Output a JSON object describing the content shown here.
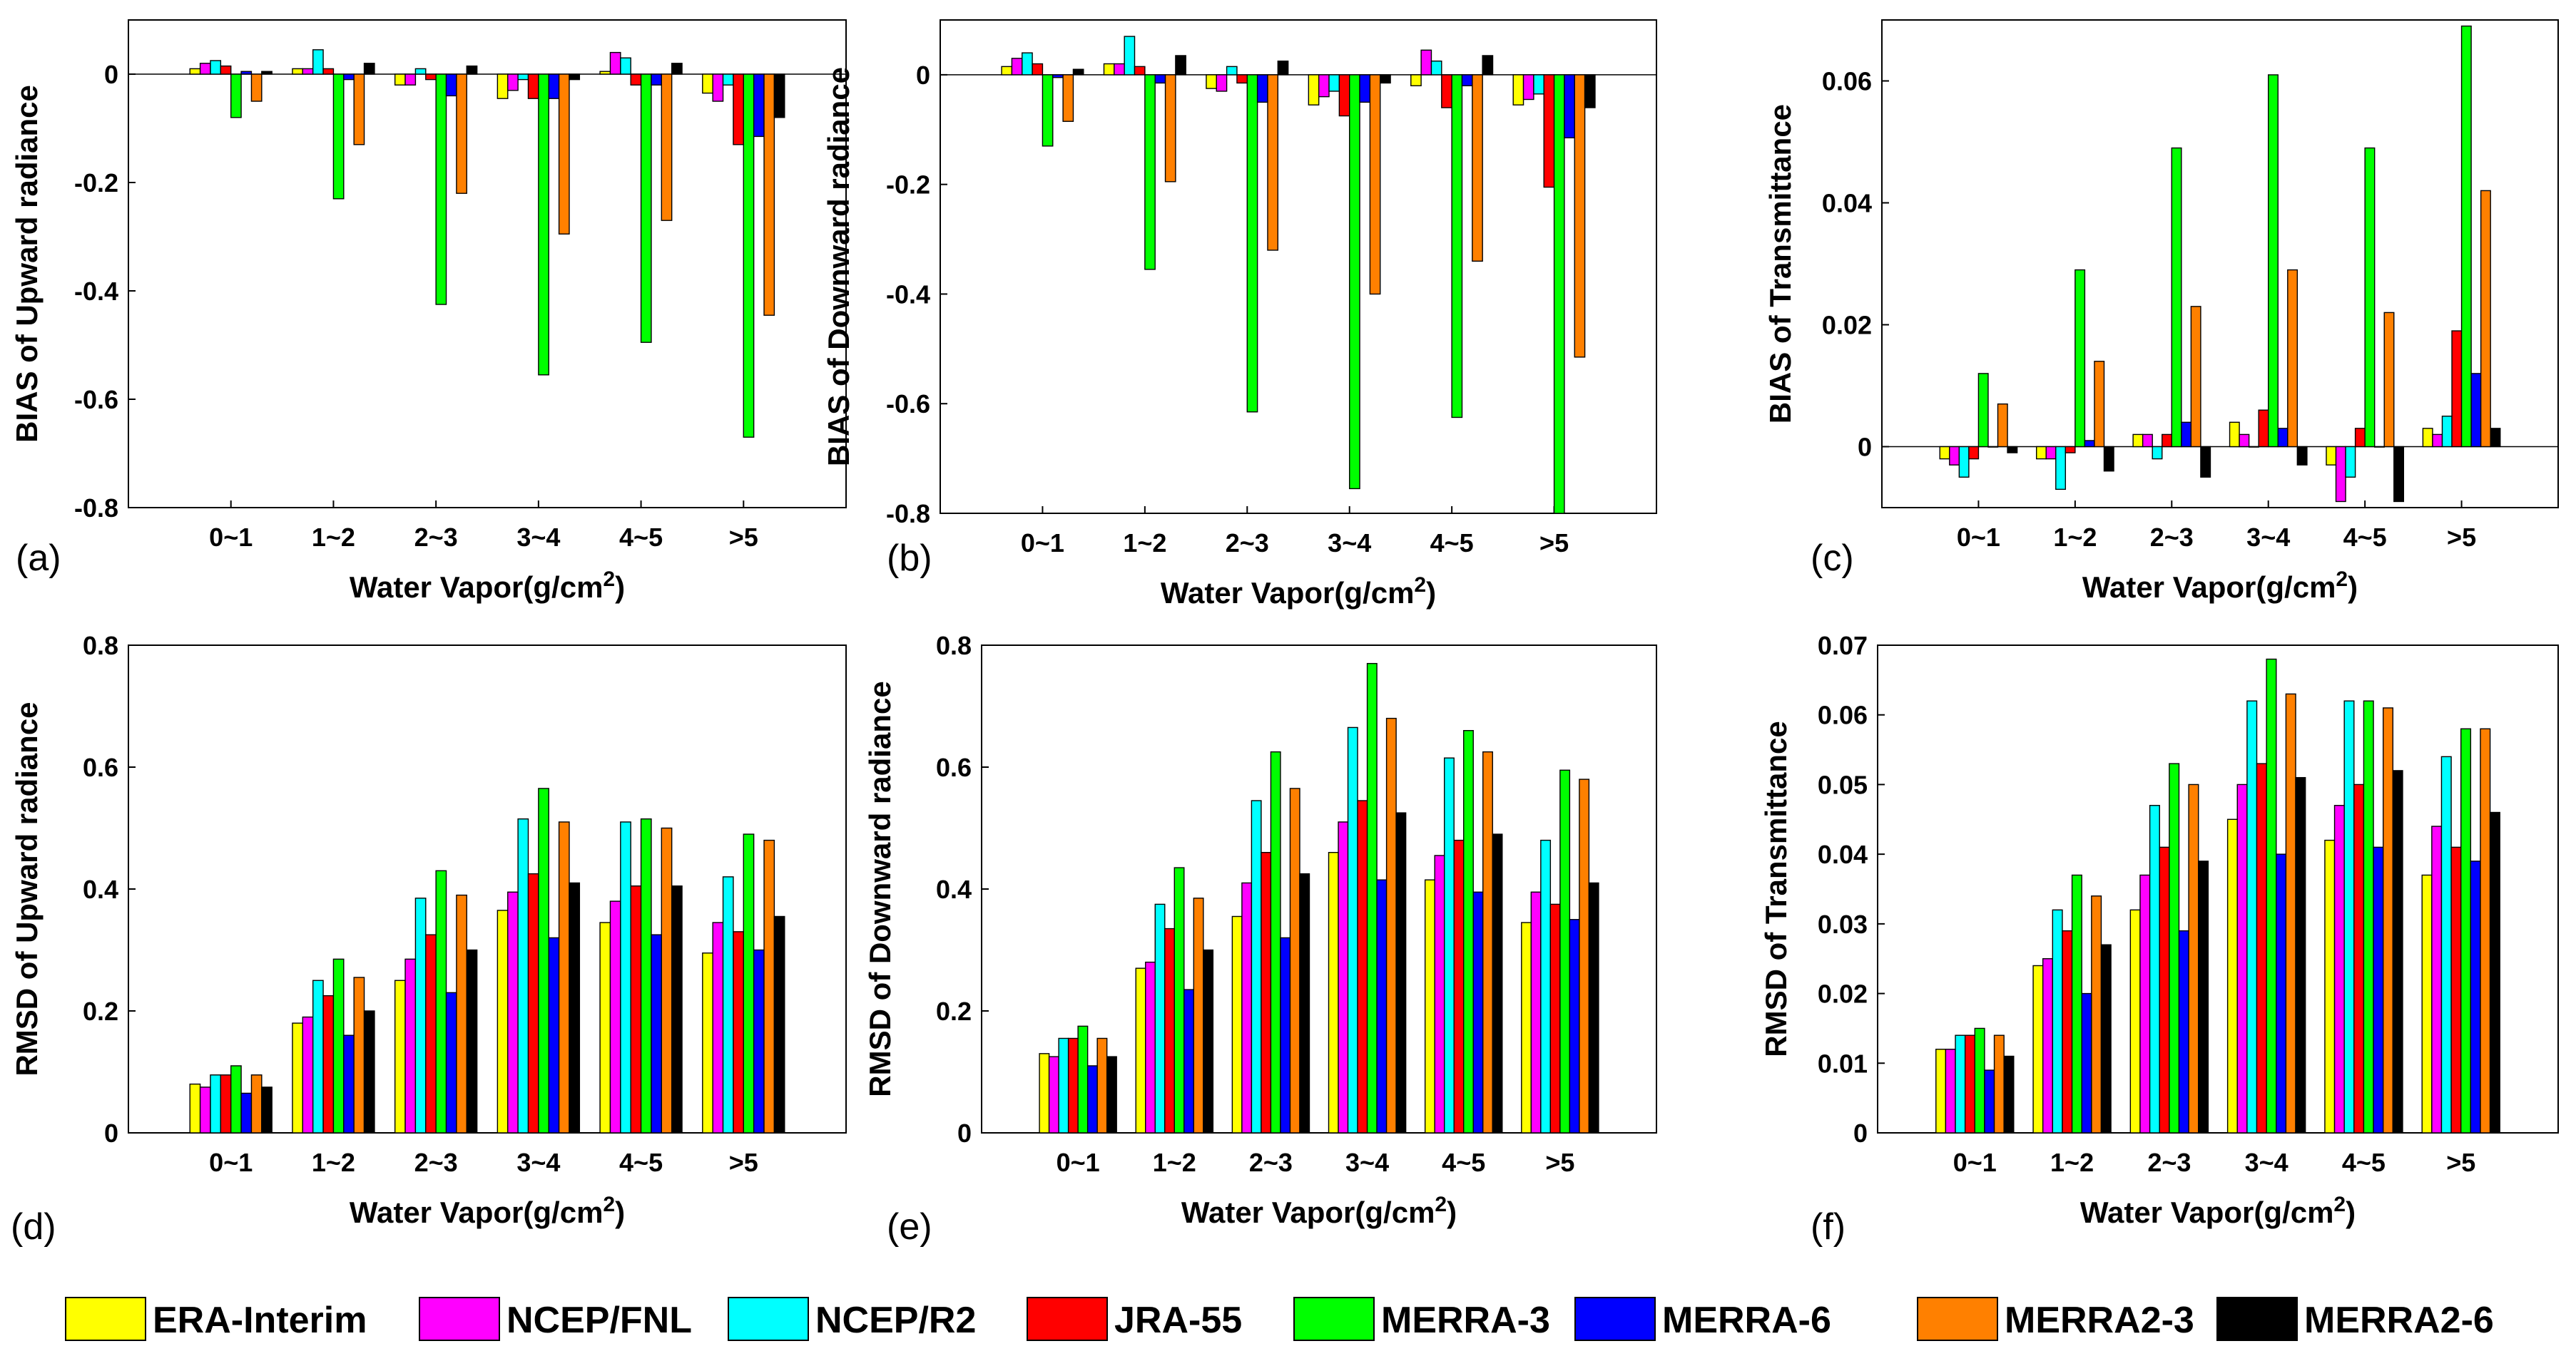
{
  "categories": [
    "0~1",
    "1~2",
    "2~3",
    "3~4",
    "4~5",
    ">5"
  ],
  "xlabel": "Water Vapor(g/cm",
  "xlabel_sup": "2",
  "xlabel_end": ")",
  "legend": [
    {
      "name": "ERA-Interim",
      "color": "#ffff00"
    },
    {
      "name": "NCEP/FNL",
      "color": "#ff00ff"
    },
    {
      "name": "NCEP/R2",
      "color": "#00ffff"
    },
    {
      "name": "JRA-55",
      "color": "#ff0000"
    },
    {
      "name": "MERRA-3",
      "color": "#00ff00"
    },
    {
      "name": "MERRA-6",
      "color": "#0000ff"
    },
    {
      "name": "MERRA2-3",
      "color": "#ff8000"
    },
    {
      "name": "MERRA2-6",
      "color": "#000000"
    }
  ],
  "chart_data": [
    {
      "panel": "(a)",
      "type": "bar",
      "ylabel": "BIAS of Upward radiance",
      "ylim": [
        -0.8,
        0.1
      ],
      "yticks": [
        -0.8,
        -0.6,
        -0.4,
        -0.2,
        0
      ],
      "ytick_labels": [
        "-0.8",
        "-0.6",
        "-0.4",
        "-0.2",
        "0"
      ],
      "series": [
        {
          "name": "ERA-Interim",
          "values": [
            0.01,
            0.01,
            -0.02,
            -0.045,
            0.005,
            -0.035
          ]
        },
        {
          "name": "NCEP/FNL",
          "values": [
            0.02,
            0.01,
            -0.02,
            -0.03,
            0.04,
            -0.05
          ]
        },
        {
          "name": "NCEP/R2",
          "values": [
            0.025,
            0.045,
            0.01,
            -0.01,
            0.03,
            -0.02
          ]
        },
        {
          "name": "JRA-55",
          "values": [
            0.015,
            0.01,
            -0.01,
            -0.045,
            -0.02,
            -0.13
          ]
        },
        {
          "name": "MERRA-3",
          "values": [
            -0.08,
            -0.23,
            -0.425,
            -0.555,
            -0.495,
            -0.67
          ]
        },
        {
          "name": "MERRA-6",
          "values": [
            0.005,
            -0.01,
            -0.04,
            -0.045,
            -0.02,
            -0.115
          ]
        },
        {
          "name": "MERRA2-3",
          "values": [
            -0.05,
            -0.13,
            -0.22,
            -0.295,
            -0.27,
            -0.445
          ]
        },
        {
          "name": "MERRA2-6",
          "values": [
            0.005,
            0.02,
            0.015,
            -0.01,
            0.02,
            -0.08
          ]
        }
      ]
    },
    {
      "panel": "(b)",
      "type": "bar",
      "ylabel": "BIAS of Downward radiance",
      "ylim": [
        -0.8,
        0.1
      ],
      "yticks": [
        -0.8,
        -0.6,
        -0.4,
        -0.2,
        0
      ],
      "ytick_labels": [
        "-0.8",
        "-0.6",
        "-0.4",
        "-0.2",
        "0"
      ],
      "series": [
        {
          "name": "ERA-Interim",
          "values": [
            0.015,
            0.02,
            -0.025,
            -0.055,
            -0.02,
            -0.055
          ]
        },
        {
          "name": "NCEP/FNL",
          "values": [
            0.03,
            0.02,
            -0.03,
            -0.04,
            0.045,
            -0.045
          ]
        },
        {
          "name": "NCEP/R2",
          "values": [
            0.04,
            0.07,
            0.015,
            -0.03,
            0.025,
            -0.035
          ]
        },
        {
          "name": "JRA-55",
          "values": [
            0.02,
            0.015,
            -0.015,
            -0.075,
            -0.06,
            -0.205
          ]
        },
        {
          "name": "MERRA-3",
          "values": [
            -0.13,
            -0.355,
            -0.615,
            -0.755,
            -0.625,
            -0.8
          ]
        },
        {
          "name": "MERRA-6",
          "values": [
            -0.005,
            -0.015,
            -0.05,
            -0.05,
            -0.02,
            -0.115
          ]
        },
        {
          "name": "MERRA2-3",
          "values": [
            -0.085,
            -0.195,
            -0.32,
            -0.4,
            -0.34,
            -0.515
          ]
        },
        {
          "name": "MERRA2-6",
          "values": [
            0.01,
            0.035,
            0.025,
            -0.015,
            0.035,
            -0.06
          ]
        }
      ]
    },
    {
      "panel": "(c)",
      "type": "bar",
      "ylabel": "BIAS of Transmittance",
      "ylim": [
        -0.01,
        0.07
      ],
      "yticks": [
        0,
        0.02,
        0.04,
        0.06
      ],
      "ytick_labels": [
        "0",
        "0.02",
        "0.04",
        "0.06"
      ],
      "series": [
        {
          "name": "ERA-Interim",
          "values": [
            -0.002,
            -0.002,
            0.002,
            0.004,
            -0.003,
            0.003
          ]
        },
        {
          "name": "NCEP/FNL",
          "values": [
            -0.003,
            -0.002,
            0.002,
            0.002,
            -0.009,
            0.002
          ]
        },
        {
          "name": "NCEP/R2",
          "values": [
            -0.005,
            -0.007,
            -0.002,
            0,
            -0.005,
            0.005
          ]
        },
        {
          "name": "JRA-55",
          "values": [
            -0.002,
            -0.001,
            0.002,
            0.006,
            0.003,
            0.019
          ]
        },
        {
          "name": "MERRA-3",
          "values": [
            0.012,
            0.029,
            0.049,
            0.061,
            0.049,
            0.069
          ]
        },
        {
          "name": "MERRA-6",
          "values": [
            0,
            0.001,
            0.004,
            0.003,
            0,
            0.012
          ]
        },
        {
          "name": "MERRA2-3",
          "values": [
            0.007,
            0.014,
            0.023,
            0.029,
            0.022,
            0.042
          ]
        },
        {
          "name": "MERRA2-6",
          "values": [
            -0.001,
            -0.004,
            -0.005,
            -0.003,
            -0.009,
            0.003
          ]
        }
      ]
    },
    {
      "panel": "(d)",
      "type": "bar",
      "ylabel": "RMSD of Upward radiance",
      "ylim": [
        0,
        0.8
      ],
      "yticks": [
        0,
        0.2,
        0.4,
        0.6,
        0.8
      ],
      "ytick_labels": [
        "0",
        "0.2",
        "0.4",
        "0.6",
        "0.8"
      ],
      "series": [
        {
          "name": "ERA-Interim",
          "values": [
            0.08,
            0.18,
            0.25,
            0.365,
            0.345,
            0.295
          ]
        },
        {
          "name": "NCEP/FNL",
          "values": [
            0.075,
            0.19,
            0.285,
            0.395,
            0.38,
            0.345
          ]
        },
        {
          "name": "NCEP/R2",
          "values": [
            0.095,
            0.25,
            0.385,
            0.515,
            0.51,
            0.42
          ]
        },
        {
          "name": "JRA-55",
          "values": [
            0.095,
            0.225,
            0.325,
            0.425,
            0.405,
            0.33
          ]
        },
        {
          "name": "MERRA-3",
          "values": [
            0.11,
            0.285,
            0.43,
            0.565,
            0.515,
            0.49
          ]
        },
        {
          "name": "MERRA-6",
          "values": [
            0.065,
            0.16,
            0.23,
            0.32,
            0.325,
            0.3
          ]
        },
        {
          "name": "MERRA2-3",
          "values": [
            0.095,
            0.255,
            0.39,
            0.51,
            0.5,
            0.48
          ]
        },
        {
          "name": "MERRA2-6",
          "values": [
            0.075,
            0.2,
            0.3,
            0.41,
            0.405,
            0.355
          ]
        }
      ]
    },
    {
      "panel": "(e)",
      "type": "bar",
      "ylabel": "RMSD of Downward radiance",
      "ylim": [
        0,
        0.8
      ],
      "yticks": [
        0,
        0.2,
        0.4,
        0.6,
        0.8
      ],
      "ytick_labels": [
        "0",
        "0.2",
        "0.4",
        "0.6",
        "0.8"
      ],
      "series": [
        {
          "name": "ERA-Interim",
          "values": [
            0.13,
            0.27,
            0.355,
            0.46,
            0.415,
            0.345
          ]
        },
        {
          "name": "NCEP/FNL",
          "values": [
            0.125,
            0.28,
            0.41,
            0.51,
            0.455,
            0.395
          ]
        },
        {
          "name": "NCEP/R2",
          "values": [
            0.155,
            0.375,
            0.545,
            0.665,
            0.615,
            0.48
          ]
        },
        {
          "name": "JRA-55",
          "values": [
            0.155,
            0.335,
            0.46,
            0.545,
            0.48,
            0.375
          ]
        },
        {
          "name": "MERRA-3",
          "values": [
            0.175,
            0.435,
            0.625,
            0.77,
            0.66,
            0.595
          ]
        },
        {
          "name": "MERRA-6",
          "values": [
            0.11,
            0.235,
            0.32,
            0.415,
            0.395,
            0.35
          ]
        },
        {
          "name": "MERRA2-3",
          "values": [
            0.155,
            0.385,
            0.565,
            0.68,
            0.625,
            0.58
          ]
        },
        {
          "name": "MERRA2-6",
          "values": [
            0.125,
            0.3,
            0.425,
            0.525,
            0.49,
            0.41
          ]
        }
      ]
    },
    {
      "panel": "(f)",
      "type": "bar",
      "ylabel": "RMSD of Transmittance",
      "ylim": [
        0,
        0.07
      ],
      "yticks": [
        0,
        0.01,
        0.02,
        0.03,
        0.04,
        0.05,
        0.06,
        0.07
      ],
      "ytick_labels": [
        "0",
        "0.01",
        "0.02",
        "0.03",
        "0.04",
        "0.05",
        "0.06",
        "0.07"
      ],
      "series": [
        {
          "name": "ERA-Interim",
          "values": [
            0.012,
            0.024,
            0.032,
            0.045,
            0.042,
            0.037
          ]
        },
        {
          "name": "NCEP/FNL",
          "values": [
            0.012,
            0.025,
            0.037,
            0.05,
            0.047,
            0.044
          ]
        },
        {
          "name": "NCEP/R2",
          "values": [
            0.014,
            0.032,
            0.047,
            0.062,
            0.062,
            0.054
          ]
        },
        {
          "name": "JRA-55",
          "values": [
            0.014,
            0.029,
            0.041,
            0.053,
            0.05,
            0.041
          ]
        },
        {
          "name": "MERRA-3",
          "values": [
            0.015,
            0.037,
            0.053,
            0.068,
            0.062,
            0.058
          ]
        },
        {
          "name": "MERRA-6",
          "values": [
            0.009,
            0.02,
            0.029,
            0.04,
            0.041,
            0.039
          ]
        },
        {
          "name": "MERRA2-3",
          "values": [
            0.014,
            0.034,
            0.05,
            0.063,
            0.061,
            0.058
          ]
        },
        {
          "name": "MERRA2-6",
          "values": [
            0.011,
            0.027,
            0.039,
            0.051,
            0.052,
            0.046
          ]
        }
      ]
    }
  ]
}
